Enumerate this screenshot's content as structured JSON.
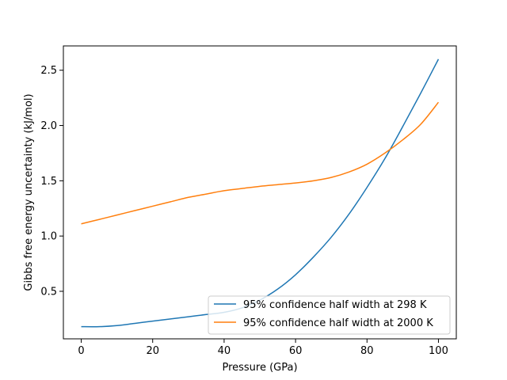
{
  "chart_data": {
    "type": "line",
    "title": "",
    "xlabel": "Pressure (GPa)",
    "ylabel": "Gibbs free energy uncertainty (kJ/mol)",
    "xlim": [
      -5,
      105
    ],
    "ylim": [
      0.07,
      2.72
    ],
    "xticks": [
      0,
      20,
      40,
      60,
      80,
      100
    ],
    "yticks": [
      0.5,
      1.0,
      1.5,
      2.0,
      2.5
    ],
    "xtick_labels": [
      "0",
      "20",
      "40",
      "60",
      "80",
      "100"
    ],
    "ytick_labels": [
      "0.5",
      "1.0",
      "1.5",
      "2.0",
      "2.5"
    ],
    "grid": false,
    "legend_position": "lower-right",
    "series": [
      {
        "name": "95% confidence half width at 298 K",
        "color": "#1f77b4",
        "x": [
          0,
          5,
          10,
          15,
          20,
          25,
          30,
          35,
          40,
          45,
          50,
          55,
          60,
          65,
          70,
          75,
          80,
          85,
          90,
          95,
          100
        ],
        "y": [
          0.18,
          0.18,
          0.19,
          0.21,
          0.23,
          0.25,
          0.27,
          0.29,
          0.31,
          0.35,
          0.42,
          0.52,
          0.65,
          0.81,
          0.99,
          1.2,
          1.44,
          1.7,
          1.99,
          2.29,
          2.6
        ]
      },
      {
        "name": "95% confidence half width at 2000 K",
        "color": "#ff7f0e",
        "x": [
          0,
          5,
          10,
          15,
          20,
          25,
          30,
          35,
          40,
          45,
          50,
          55,
          60,
          65,
          70,
          75,
          80,
          85,
          90,
          95,
          100
        ],
        "y": [
          1.11,
          1.15,
          1.19,
          1.23,
          1.27,
          1.31,
          1.35,
          1.38,
          1.41,
          1.43,
          1.45,
          1.465,
          1.48,
          1.5,
          1.53,
          1.58,
          1.65,
          1.75,
          1.87,
          2.01,
          2.21
        ]
      }
    ]
  }
}
